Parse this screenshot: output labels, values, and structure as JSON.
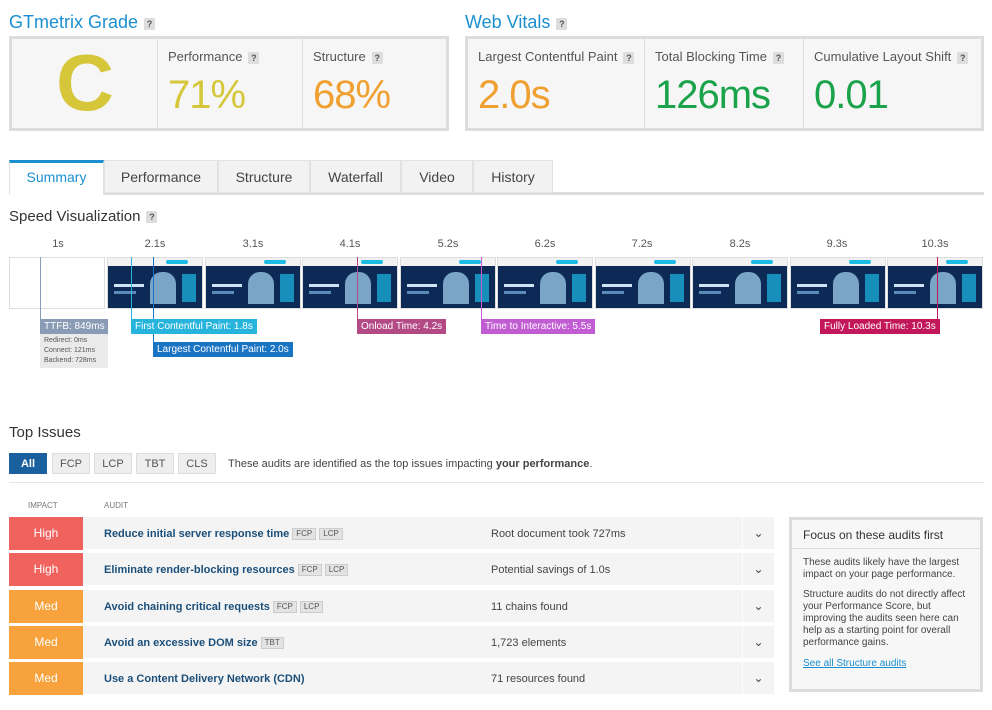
{
  "grade": {
    "title": "GTmetrix Grade",
    "help": "?",
    "letter": "C",
    "performance": {
      "label": "Performance",
      "value": "71%"
    },
    "structure": {
      "label": "Structure",
      "value": "68%"
    }
  },
  "vitals": {
    "title": "Web Vitals",
    "help": "?",
    "lcp": {
      "label": "Largest Contentful Paint",
      "value": "2.0s"
    },
    "tbt": {
      "label": "Total Blocking Time",
      "value": "126ms"
    },
    "cls": {
      "label": "Cumulative Layout Shift",
      "value": "0.01"
    }
  },
  "tabs": [
    "Summary",
    "Performance",
    "Structure",
    "Waterfall",
    "Video",
    "History"
  ],
  "speed": {
    "title": "Speed Visualization",
    "ticks": [
      "1s",
      "2.1s",
      "3.1s",
      "4.1s",
      "5.2s",
      "6.2s",
      "7.2s",
      "8.2s",
      "9.3s",
      "10.3s"
    ],
    "ttfb": "TTFB: 849ms",
    "ttfb_details": [
      "Redirect: 0ms",
      "Connect: 121ms",
      "Backend: 728ms"
    ],
    "fcp": "First Contentful Paint: 1.8s",
    "lcp": "Largest Contentful Paint: 2.0s",
    "onload": "Onload Time: 4.2s",
    "tti": "Time to Interactive: 5.5s",
    "fully": "Fully Loaded Time: 10.3s"
  },
  "issues": {
    "title": "Top Issues",
    "filters": [
      "All",
      "FCP",
      "LCP",
      "TBT",
      "CLS"
    ],
    "intro": "These audits are identified as the top issues impacting",
    "intro_bold": "your performance",
    "intro_end": ".",
    "col_impact": "IMPACT",
    "col_audit": "AUDIT",
    "rows": [
      {
        "impact": "High",
        "name": "Reduce initial server response time",
        "tags": [
          "FCP",
          "LCP"
        ],
        "result": "Root document took 727ms"
      },
      {
        "impact": "High",
        "name": "Eliminate render-blocking resources",
        "tags": [
          "FCP",
          "LCP"
        ],
        "result": "Potential savings of 1.0s"
      },
      {
        "impact": "Med",
        "name": "Avoid chaining critical requests",
        "tags": [
          "FCP",
          "LCP"
        ],
        "result": "11 chains found"
      },
      {
        "impact": "Med",
        "name": "Avoid an excessive DOM size",
        "tags": [
          "TBT"
        ],
        "result": "1,723 elements"
      },
      {
        "impact": "Med",
        "name": "Use a Content Delivery Network (CDN)",
        "tags": [],
        "result": "71 resources found"
      }
    ]
  },
  "focus": {
    "title": "Focus on these audits first",
    "p1": "These audits likely have the largest impact on your page performance.",
    "p2": "Structure audits do not directly affect your Performance Score, but improving the audits seen here can help as a starting point for overall performance gains.",
    "link": "See all Structure audits"
  },
  "colors": {
    "accent": "#1a8fd0",
    "grade_c": "#d6c63a",
    "orange": "#f0a030",
    "green": "#1aa34a",
    "high": "#f0625e",
    "med": "#f7a23c",
    "ttfb": "#8a9bb5",
    "fcp": "#27b4dc",
    "lcp": "#1a74c4",
    "onload": "#b34a86",
    "tti": "#c15cd3",
    "fully": "#c2185b"
  }
}
